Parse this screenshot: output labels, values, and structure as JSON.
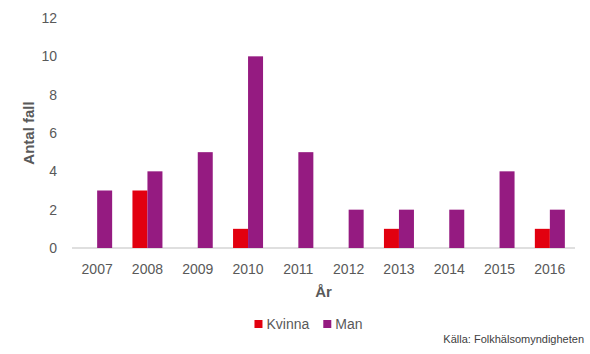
{
  "chart_data": {
    "type": "bar",
    "x_label": "År",
    "y_label": "Antal fall",
    "categories": [
      "2007",
      "2008",
      "2009",
      "2010",
      "2011",
      "2012",
      "2013",
      "2014",
      "2015",
      "2016"
    ],
    "series": [
      {
        "name": "Kvinna",
        "color": "#e2000f",
        "values": [
          0,
          3,
          0,
          1,
          0,
          0,
          1,
          0,
          0,
          1
        ]
      },
      {
        "name": "Man",
        "color": "#951b81",
        "values": [
          3,
          4,
          5,
          10,
          5,
          2,
          2,
          2,
          4,
          2
        ]
      }
    ],
    "ylim": [
      0,
      12
    ],
    "yticks": [
      0,
      2,
      4,
      6,
      8,
      10,
      12
    ],
    "grid": false,
    "legend": "bottom",
    "annotations": [
      "Källa: Folkhälsomyndigheten"
    ]
  }
}
